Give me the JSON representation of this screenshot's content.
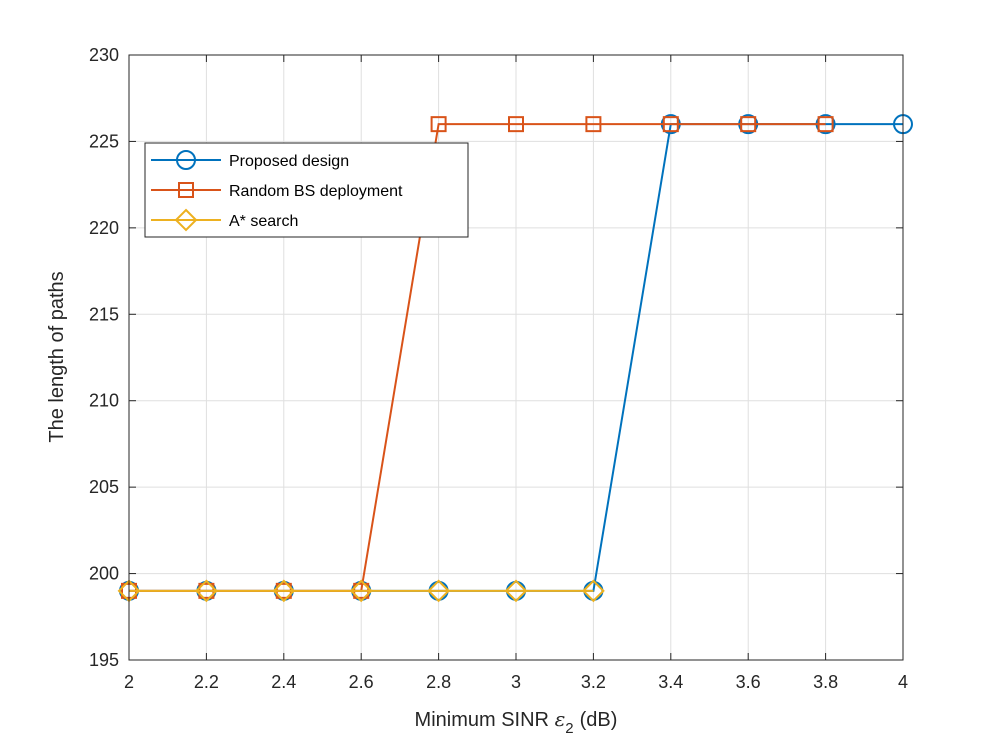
{
  "chart_data": {
    "type": "line",
    "title": "",
    "xlabel": "Minimum SINR",
    "xlabel_symbol": "ε",
    "xlabel_subscript": "2",
    "xlabel_unit": "(dB)",
    "ylabel": "The length of paths",
    "xlim": [
      2,
      4
    ],
    "ylim": [
      195,
      230
    ],
    "grid": true,
    "legend_position": "top-left",
    "x_ticks": [
      2,
      2.2,
      2.4,
      2.6,
      2.8,
      3,
      3.2,
      3.4,
      3.6,
      3.8,
      4
    ],
    "x_tick_labels": [
      "2",
      "2.2",
      "2.4",
      "2.6",
      "2.8",
      "3",
      "3.2",
      "3.4",
      "3.6",
      "3.8",
      "4"
    ],
    "y_ticks": [
      195,
      200,
      205,
      210,
      215,
      220,
      225,
      230
    ],
    "y_tick_labels": [
      "195",
      "200",
      "205",
      "210",
      "215",
      "220",
      "225",
      "230"
    ],
    "series": [
      {
        "name": "Proposed design",
        "color": "#0072BD",
        "marker": "circle",
        "x": [
          2,
          2.2,
          2.4,
          2.6,
          2.8,
          3,
          3.2,
          3.4,
          3.6,
          3.8,
          4
        ],
        "values": [
          199,
          199,
          199,
          199,
          199,
          199,
          199,
          226,
          226,
          226,
          226
        ]
      },
      {
        "name": "Random BS deployment",
        "color": "#D95319",
        "marker": "square",
        "x": [
          2,
          2.2,
          2.4,
          2.6,
          2.8,
          3,
          3.2,
          3.4,
          3.6,
          3.8
        ],
        "values": [
          199,
          199,
          199,
          199,
          226,
          226,
          226,
          226,
          226,
          226
        ]
      },
      {
        "name": "A* search",
        "color": "#EDB120",
        "marker": "diamond",
        "x": [
          2,
          2.2,
          2.4,
          2.6,
          2.8,
          3,
          3.2
        ],
        "values": [
          199,
          199,
          199,
          199,
          199,
          199,
          199
        ]
      }
    ]
  }
}
